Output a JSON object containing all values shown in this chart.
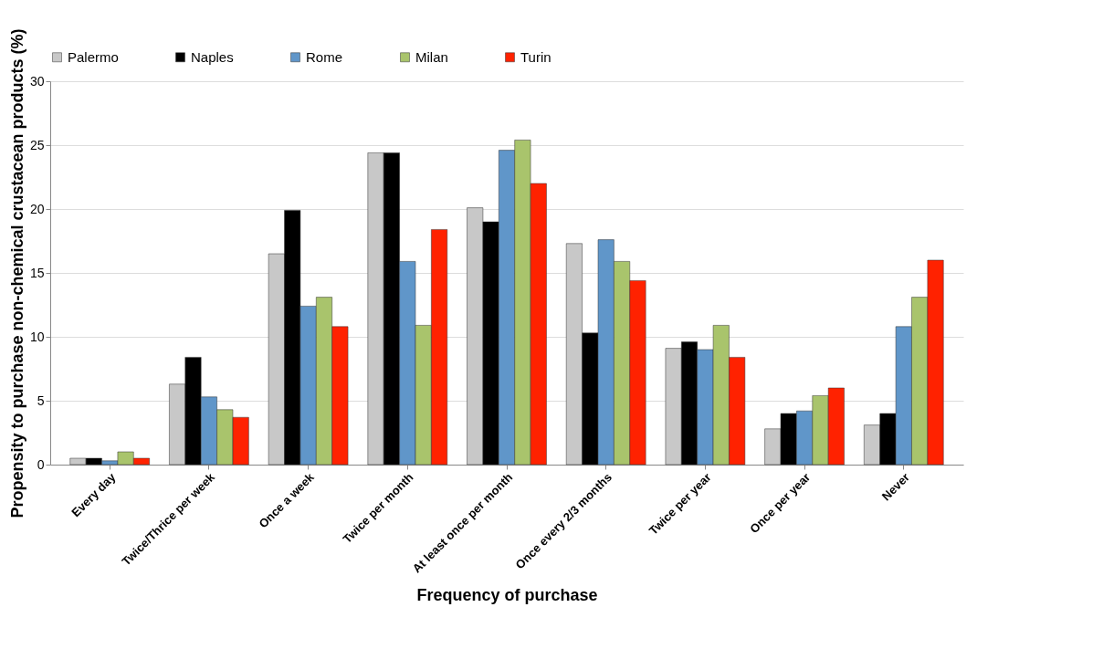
{
  "chart_data": {
    "type": "bar",
    "xlabel": "Frequency of purchase",
    "ylabel": "Propensity to purchase non-chemical crustacean products (%)",
    "categories": [
      "Every day",
      "Twice/Thrice per week",
      "Once a week",
      "Twice per month",
      "At least once per month",
      "Once every 2/3 months",
      "Twice per year",
      "Once per year",
      "Never"
    ],
    "series": [
      {
        "name": "Palermo",
        "color": "#c8c8c8",
        "values": [
          0.5,
          6.3,
          16.5,
          24.4,
          20.1,
          17.3,
          9.1,
          2.8,
          3.1
        ]
      },
      {
        "name": "Naples",
        "color": "#000000",
        "values": [
          0.5,
          8.4,
          19.9,
          24.4,
          19.0,
          10.3,
          9.6,
          4.0,
          4.0
        ]
      },
      {
        "name": "Rome",
        "color": "#6096c9",
        "values": [
          0.3,
          5.3,
          12.4,
          15.9,
          24.6,
          17.6,
          9.0,
          4.2,
          10.8
        ]
      },
      {
        "name": "Milan",
        "color": "#a9c46c",
        "values": [
          1.0,
          4.3,
          13.1,
          10.9,
          25.4,
          15.9,
          10.9,
          5.4,
          13.1
        ]
      },
      {
        "name": "Turin",
        "color": "#ff2200",
        "values": [
          0.5,
          3.7,
          10.8,
          18.4,
          22.0,
          14.4,
          8.4,
          6.0,
          16.0
        ]
      }
    ],
    "ylim": [
      0,
      30
    ],
    "yticks": [
      0,
      5,
      10,
      15,
      20,
      25,
      30
    ],
    "grid": "y",
    "legend": "top"
  }
}
